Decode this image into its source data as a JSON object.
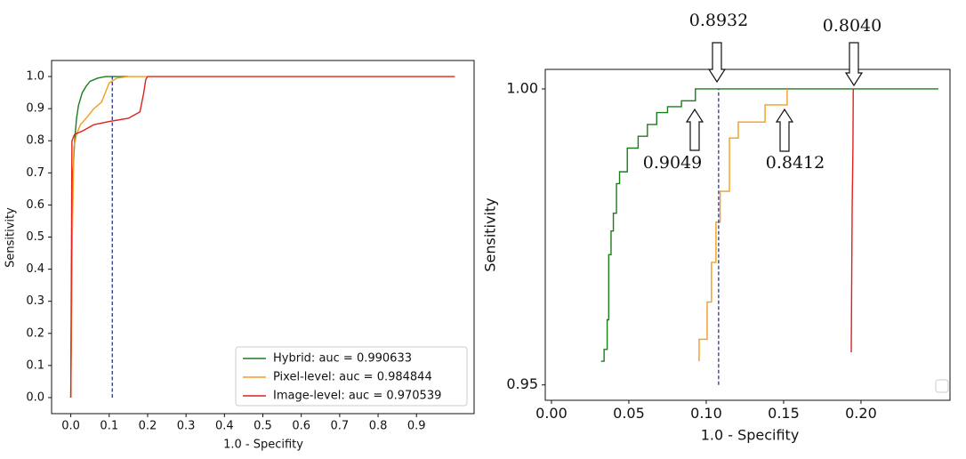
{
  "chart_data": [
    {
      "type": "line",
      "xlabel": "1.0 - Specifity",
      "ylabel": "Sensitivity",
      "xlim": [
        -0.05,
        1.05
      ],
      "ylim": [
        -0.05,
        1.05
      ],
      "xticks": [
        {
          "value": 0,
          "label": "0.0"
        },
        0.1,
        0.2,
        0.3,
        0.4,
        0.5,
        0.6,
        0.7,
        0.8,
        0.9
      ],
      "yticks": [
        {
          "value": 0,
          "label": "0.0"
        },
        0.1,
        0.2,
        0.3,
        0.4,
        0.5,
        0.6,
        0.7,
        0.8,
        0.9,
        {
          "value": 1,
          "label": "1.0"
        }
      ],
      "legend": "lower right",
      "series": [
        {
          "name": "Hybrid: auc = 0.990633",
          "color": "#1b7d1b",
          "x": [
            0,
            0.003,
            0.006,
            0.01,
            0.015,
            0.02,
            0.03,
            0.04,
            0.05,
            0.07,
            0.09,
            0.15
          ],
          "values": [
            0,
            0.5,
            0.7,
            0.8,
            0.87,
            0.91,
            0.95,
            0.97,
            0.985,
            0.995,
            1.0,
            1.0
          ]
        },
        {
          "name": "Pixel-level: auc = 0.984844",
          "color": "#f39c1f",
          "x": [
            0,
            0.004,
            0.008,
            0.015,
            0.025,
            0.04,
            0.06,
            0.08,
            0.09,
            0.1,
            0.12,
            0.15,
            0.2
          ],
          "values": [
            0,
            0.5,
            0.78,
            0.82,
            0.85,
            0.87,
            0.9,
            0.92,
            0.95,
            0.98,
            0.995,
            1.0,
            1.0
          ]
        },
        {
          "name": "Image-level: auc = 0.970539",
          "color": "#e0201c",
          "x": [
            0,
            0.003,
            0.01,
            0.03,
            0.06,
            0.1,
            0.15,
            0.18,
            0.19,
            0.195,
            0.2,
            1.0
          ],
          "values": [
            0,
            0.8,
            0.82,
            0.83,
            0.85,
            0.86,
            0.87,
            0.89,
            0.95,
            0.99,
            1.0,
            1.0
          ]
        },
        {
          "color": "#1a237e",
          "linestyle": "dashed",
          "x": [
            0.108,
            0.108
          ],
          "values": [
            0,
            1
          ]
        }
      ]
    },
    {
      "type": "line",
      "xlabel": "1.0 - Specifity",
      "ylabel": "Sensitivity",
      "xlim": [
        -0.004,
        0.2575
      ],
      "ylim": [
        0.9474,
        1.0033
      ],
      "xticks": [
        {
          "value": 0,
          "label": "0.00"
        },
        {
          "value": 0.05,
          "label": "0.05"
        },
        {
          "value": 0.1,
          "label": "0.10"
        },
        {
          "value": 0.15,
          "label": "0.15"
        },
        {
          "value": 0.2,
          "label": "0.20"
        }
      ],
      "yticks": [
        0.95,
        {
          "value": 1,
          "label": "1.00"
        }
      ],
      "legend": "lower right",
      "annotations": [
        "0.8932",
        "0.8040",
        "0.9049",
        "0.8412"
      ],
      "series": [
        {
          "color": "#1b7d1b",
          "x": [
            0.032,
            0.034,
            0.034,
            0.036,
            0.036,
            0.037,
            0.037,
            0.0385,
            0.0385,
            0.04,
            0.04,
            0.042,
            0.042,
            0.044,
            0.044,
            0.049,
            0.049,
            0.056,
            0.056,
            0.062,
            0.062,
            0.068,
            0.068,
            0.075,
            0.075,
            0.084,
            0.084,
            0.093,
            0.093,
            0.25
          ],
          "values": [
            0.954,
            0.954,
            0.956,
            0.956,
            0.961,
            0.961,
            0.972,
            0.972,
            0.976,
            0.976,
            0.979,
            0.979,
            0.984,
            0.984,
            0.986,
            0.986,
            0.99,
            0.99,
            0.992,
            0.992,
            0.994,
            0.994,
            0.996,
            0.996,
            0.997,
            0.997,
            0.998,
            0.998,
            1.0,
            1.0
          ]
        },
        {
          "color": "#f39c1f",
          "x": [
            0.0954,
            0.0954,
            0.1006,
            0.1006,
            0.1034,
            0.1034,
            0.1063,
            0.1063,
            0.109,
            0.109,
            0.115,
            0.115,
            0.1207,
            0.1207,
            0.138,
            0.138,
            0.1523,
            0.1523
          ],
          "values": [
            0.954,
            0.9577,
            0.9577,
            0.964,
            0.964,
            0.9707,
            0.9707,
            0.9775,
            0.9775,
            0.9827,
            0.9827,
            0.9917,
            0.9917,
            0.9944,
            0.9944,
            0.9973,
            0.9973,
            1.0
          ]
        },
        {
          "color": "#e0201c",
          "x": [
            0.1937,
            0.1943,
            0.1948,
            0.195
          ],
          "values": [
            0.9555,
            0.98,
            0.99,
            1.0
          ]
        },
        {
          "color": "#1a237e",
          "linestyle": "dashed",
          "x": [
            0.108,
            0.108
          ],
          "values": [
            0.95,
            1.0
          ]
        }
      ]
    }
  ]
}
